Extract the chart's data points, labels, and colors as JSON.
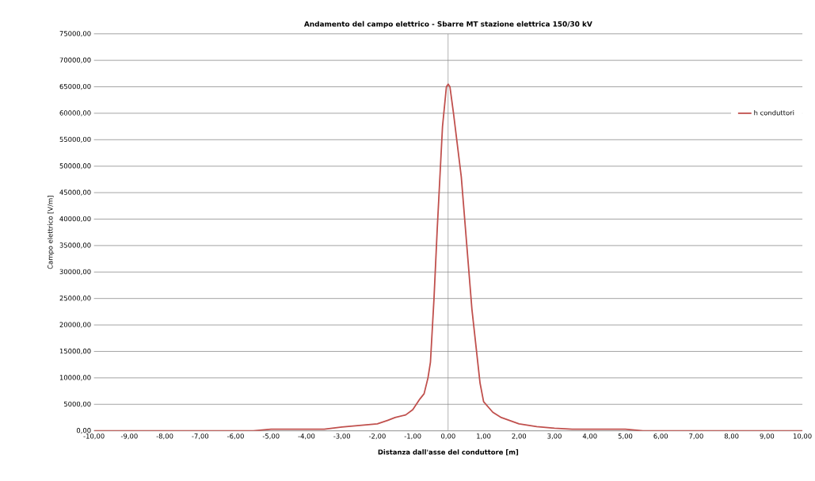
{
  "chart_data": {
    "type": "line",
    "title": "Andamento del campo elettrico - Sbarre MT stazione elettrica 150/30 kV",
    "xlabel": "Distanza dall'asse del conduttore [m]",
    "ylabel": "Campo elettrico [V/m]",
    "x": [
      -10,
      -5.5,
      -5,
      -4,
      -3.5,
      -3,
      -2.5,
      -2,
      -1.7,
      -1.5,
      -1.2,
      -1,
      -0.8,
      -0.68,
      -0.57,
      -0.5,
      -0.4,
      -0.31,
      -0.16,
      -0.05,
      0,
      0.05,
      0.15,
      0.37,
      0.67,
      0.9,
      1,
      1.26,
      1.5,
      2,
      2.5,
      3,
      3.5,
      4,
      5,
      5.5,
      10
    ],
    "series": [
      {
        "name": "h conduttori",
        "color": "#c0504d",
        "values": [
          0,
          0,
          300,
          300,
          300,
          700,
          1000,
          1300,
          2000,
          2500,
          3000,
          4000,
          6000,
          7000,
          10000,
          13000,
          25000,
          38000,
          57500,
          65000,
          65500,
          65000,
          60000,
          48000,
          23000,
          9000,
          5500,
          3500,
          2500,
          1300,
          800,
          500,
          300,
          300,
          300,
          0,
          0
        ]
      }
    ],
    "ref_lines": [
      {
        "axis": "x",
        "value": 0,
        "color": "#8c8c8c"
      }
    ],
    "xlim": [
      -10,
      10
    ],
    "xticks": [
      {
        "value": -10,
        "label": "-10,00"
      },
      {
        "value": -9,
        "label": "-9,00"
      },
      {
        "value": -8,
        "label": "-8,00"
      },
      {
        "value": -7,
        "label": "-7,00"
      },
      {
        "value": -6,
        "label": "-6,00"
      },
      {
        "value": -5,
        "label": "-5,00"
      },
      {
        "value": -4,
        "label": "-4,00"
      },
      {
        "value": -3,
        "label": "-3,00"
      },
      {
        "value": -2,
        "label": "-2,00"
      },
      {
        "value": -1,
        "label": "-1,00"
      },
      {
        "value": 0,
        "label": "0,00"
      },
      {
        "value": 1,
        "label": "1,00"
      },
      {
        "value": 2,
        "label": "2,00"
      },
      {
        "value": 3,
        "label": "3,00"
      },
      {
        "value": 4,
        "label": "4,00"
      },
      {
        "value": 5,
        "label": "5,00"
      },
      {
        "value": 6,
        "label": "6,00"
      },
      {
        "value": 7,
        "label": "7,00"
      },
      {
        "value": 8,
        "label": "8,00"
      },
      {
        "value": 9,
        "label": "9,00"
      },
      {
        "value": 10,
        "label": "10,00"
      }
    ],
    "ylim": [
      0,
      75000
    ],
    "yticks": [
      {
        "value": 0,
        "label": "0,00"
      },
      {
        "value": 5000,
        "label": "5000,00"
      },
      {
        "value": 10000,
        "label": "10000,00"
      },
      {
        "value": 15000,
        "label": "15000,00"
      },
      {
        "value": 20000,
        "label": "20000,00"
      },
      {
        "value": 25000,
        "label": "25000,00"
      },
      {
        "value": 30000,
        "label": "30000,00"
      },
      {
        "value": 35000,
        "label": "35000,00"
      },
      {
        "value": 40000,
        "label": "40000,00"
      },
      {
        "value": 45000,
        "label": "45000,00"
      },
      {
        "value": 50000,
        "label": "50000,00"
      },
      {
        "value": 55000,
        "label": "55000,00"
      },
      {
        "value": 60000,
        "label": "60000,00"
      },
      {
        "value": 65000,
        "label": "65000,00"
      },
      {
        "value": 70000,
        "label": "70000,00"
      },
      {
        "value": 75000,
        "label": "75000,00"
      }
    ],
    "grid": "y",
    "legend": "right",
    "marker": "none",
    "line_style": "solid"
  }
}
